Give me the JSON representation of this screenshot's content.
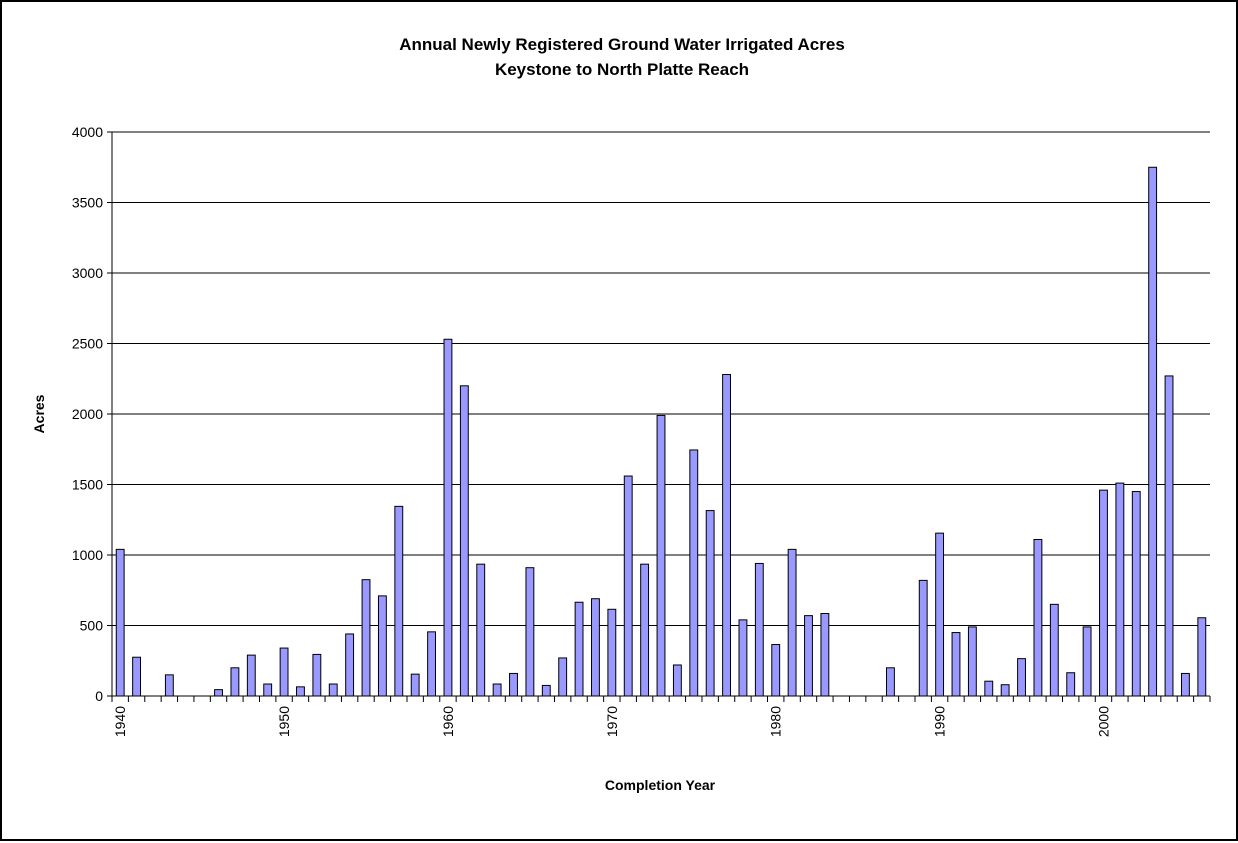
{
  "chart_data": {
    "type": "bar",
    "title": [
      "Annual Newly Registered Ground Water Irrigated Acres",
      "Keystone to North Platte Reach"
    ],
    "xlabel": "Completion Year",
    "ylabel": "Acres",
    "ylim": [
      0,
      4000
    ],
    "yticks": [
      0,
      500,
      1000,
      1500,
      2000,
      2500,
      3000,
      3500,
      4000
    ],
    "xtick_labels": [
      "1940",
      "1950",
      "1960",
      "1970",
      "1980",
      "1990",
      "2000"
    ],
    "grid": "horizontal",
    "legend": "none",
    "bar_color": "#9999ff",
    "bar_edge_color": "#000000",
    "categories": [
      1940,
      1941,
      1942,
      1943,
      1944,
      1945,
      1946,
      1947,
      1948,
      1949,
      1950,
      1951,
      1952,
      1953,
      1954,
      1955,
      1956,
      1957,
      1958,
      1959,
      1960,
      1961,
      1962,
      1963,
      1964,
      1965,
      1966,
      1967,
      1968,
      1969,
      1970,
      1971,
      1972,
      1973,
      1974,
      1975,
      1976,
      1977,
      1978,
      1979,
      1980,
      1981,
      1982,
      1983,
      1984,
      1985,
      1986,
      1987,
      1988,
      1989,
      1990,
      1991,
      1992,
      1993,
      1994,
      1995,
      1996,
      1997,
      1998,
      1999,
      2000,
      2001,
      2002,
      2003,
      2004,
      2005,
      2006
    ],
    "values": [
      1040,
      275,
      0,
      150,
      0,
      0,
      45,
      200,
      290,
      85,
      340,
      65,
      295,
      85,
      440,
      825,
      710,
      1345,
      155,
      455,
      2530,
      2200,
      935,
      85,
      160,
      910,
      75,
      270,
      665,
      690,
      615,
      1560,
      935,
      1990,
      220,
      1745,
      1315,
      2280,
      540,
      940,
      365,
      1040,
      570,
      585,
      0,
      0,
      0,
      200,
      0,
      820,
      1155,
      450,
      490,
      105,
      80,
      265,
      1110,
      650,
      165,
      490,
      1460,
      1510,
      1450,
      3750,
      2270,
      160,
      555
    ]
  }
}
